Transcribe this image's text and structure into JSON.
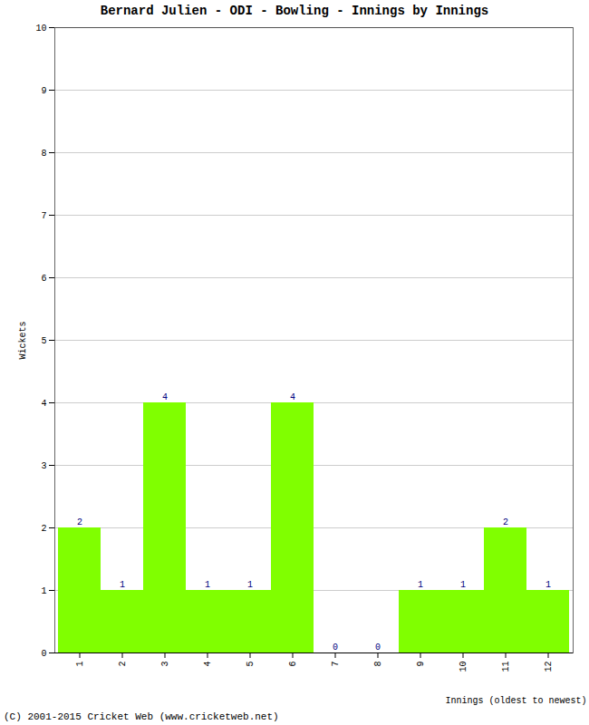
{
  "chart_data": {
    "type": "bar",
    "title": "Bernard Julien - ODI - Bowling - Innings by Innings",
    "caption": "(C) 2001-2015 Cricket Web (www.cricketweb.net)",
    "xlabel": "Innings (oldest to newest)",
    "ylabel": "Wickets",
    "categories": [
      "1",
      "2",
      "3",
      "4",
      "5",
      "6",
      "7",
      "8",
      "9",
      "10",
      "11",
      "12"
    ],
    "values": [
      2,
      1,
      4,
      1,
      1,
      4,
      0,
      0,
      1,
      1,
      2,
      1
    ],
    "color": "#80ff00",
    "ylim": [
      0,
      10
    ],
    "yticks": [
      0,
      1,
      2,
      3,
      4,
      5,
      6,
      7,
      8,
      9,
      10
    ],
    "grid": true,
    "data_labels": true
  }
}
